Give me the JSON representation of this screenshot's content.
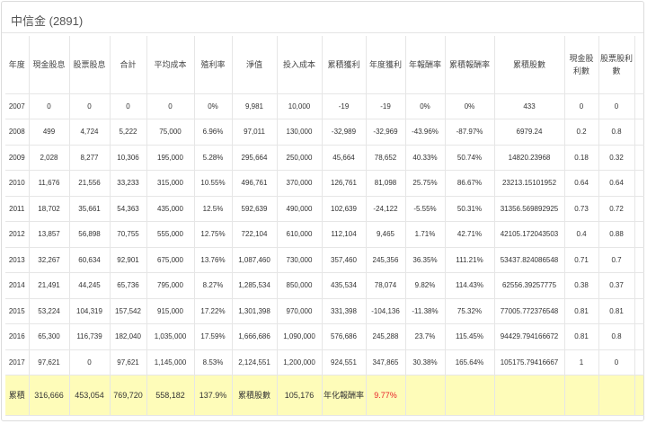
{
  "title": "中信金 (2891)",
  "headers": [
    "年度",
    "現金股息",
    "股票股息",
    "合計",
    "平均成本",
    "殖利率",
    "淨值",
    "投入成本",
    "累積獲利",
    "年度獲利",
    "年報酬率",
    "累積報酬率",
    "累積股數",
    "現金股利數",
    "股票股利數"
  ],
  "rows": [
    [
      "2007",
      "0",
      "0",
      "0",
      "0",
      "0%",
      "9,981",
      "10,000",
      "-19",
      "-19",
      "0%",
      "0%",
      "433",
      "0",
      "0"
    ],
    [
      "2008",
      "499",
      "4,724",
      "5,222",
      "75,000",
      "6.96%",
      "97,011",
      "130,000",
      "-32,989",
      "-32,969",
      "-43.96%",
      "-87.97%",
      "6979.24",
      "0.2",
      "0.8"
    ],
    [
      "2009",
      "2,028",
      "8,277",
      "10,306",
      "195,000",
      "5.28%",
      "295,664",
      "250,000",
      "45,664",
      "78,652",
      "40.33%",
      "50.74%",
      "14820.23968",
      "0.18",
      "0.32"
    ],
    [
      "2010",
      "11,676",
      "21,556",
      "33,233",
      "315,000",
      "10.55%",
      "496,761",
      "370,000",
      "126,761",
      "81,098",
      "25.75%",
      "86.67%",
      "23213.15101952",
      "0.64",
      "0.64"
    ],
    [
      "2011",
      "18,702",
      "35,661",
      "54,363",
      "435,000",
      "12.5%",
      "592,639",
      "490,000",
      "102,639",
      "-24,122",
      "-5.55%",
      "50.31%",
      "31356.569892925",
      "0.73",
      "0.72"
    ],
    [
      "2012",
      "13,857",
      "56,898",
      "70,755",
      "555,000",
      "12.75%",
      "722,104",
      "610,000",
      "112,104",
      "9,465",
      "1.71%",
      "42.71%",
      "42105.172043503",
      "0.4",
      "0.88"
    ],
    [
      "2013",
      "32,267",
      "60,634",
      "92,901",
      "675,000",
      "13.76%",
      "1,087,460",
      "730,000",
      "357,460",
      "245,356",
      "36.35%",
      "111.21%",
      "53437.824086548",
      "0.71",
      "0.7"
    ],
    [
      "2014",
      "21,491",
      "44,245",
      "65,736",
      "795,000",
      "8.27%",
      "1,285,534",
      "850,000",
      "435,534",
      "78,074",
      "9.82%",
      "114.43%",
      "62556.39257775",
      "0.38",
      "0.37"
    ],
    [
      "2015",
      "53,224",
      "104,319",
      "157,542",
      "915,000",
      "17.22%",
      "1,301,398",
      "970,000",
      "331,398",
      "-104,136",
      "-11.38%",
      "75.32%",
      "77005.772376548",
      "0.81",
      "0.81"
    ],
    [
      "2016",
      "65,300",
      "116,739",
      "182,040",
      "1,035,000",
      "17.59%",
      "1,666,686",
      "1,090,000",
      "576,686",
      "245,288",
      "23.7%",
      "115.45%",
      "94429.794166672",
      "0.81",
      "0.8"
    ],
    [
      "2017",
      "97,621",
      "0",
      "97,621",
      "1,145,000",
      "8.53%",
      "2,124,551",
      "1,200,000",
      "924,551",
      "347,865",
      "30.38%",
      "165.64%",
      "105175.79416667",
      "1",
      "0"
    ]
  ],
  "totals": {
    "label": "累積",
    "cash": "316,666",
    "stock": "453,054",
    "sum": "769,720",
    "avg_cost": "558,182",
    "yield": "137.9%",
    "shares_label": "累積股數",
    "shares": "105,176",
    "annualized_label": "年化報酬率",
    "annualized": "9.77%"
  },
  "colors": {
    "total_bg": "#fefcb9",
    "highlight": "#e8242a"
  }
}
